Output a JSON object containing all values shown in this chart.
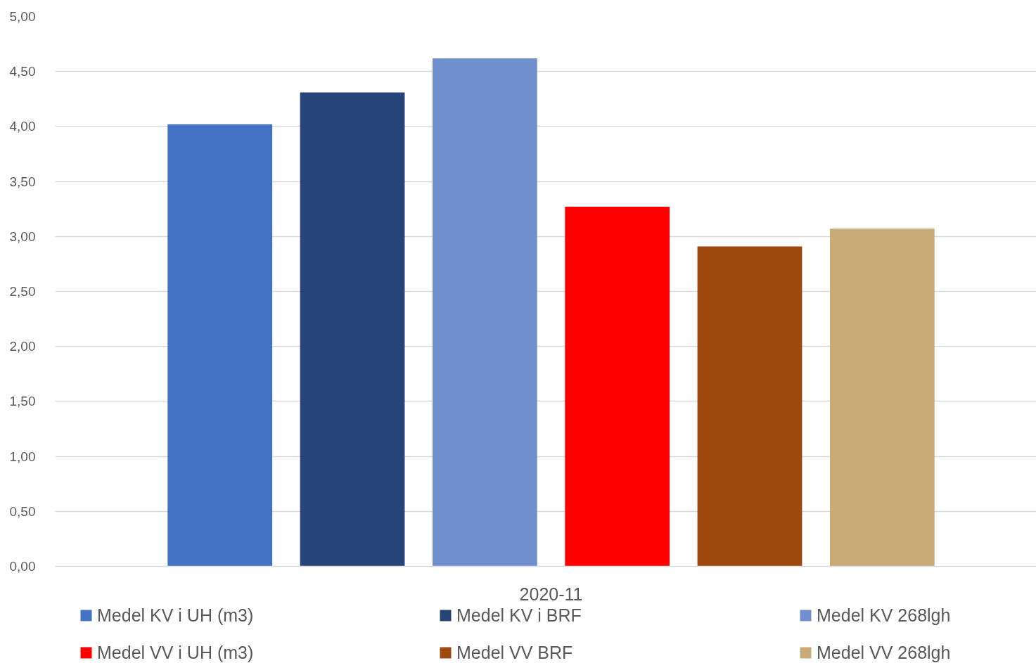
{
  "chart_data": {
    "type": "bar",
    "categories": [
      "2020-11"
    ],
    "series": [
      {
        "name": "Medel KV i UH (m3)",
        "color": "#4472c4",
        "values": [
          4.02
        ]
      },
      {
        "name": "Medel KV i BRF",
        "color": "#264478",
        "values": [
          4.31
        ]
      },
      {
        "name": "Medel KV 268lgh",
        "color": "#6f8fcf",
        "values": [
          4.62
        ]
      },
      {
        "name": "Medel VV i UH (m3)",
        "color": "#ff0000",
        "values": [
          3.27
        ]
      },
      {
        "name": "Medel VV BRF",
        "color": "#9e480e",
        "values": [
          2.91
        ]
      },
      {
        "name": "Medel VV 268lgh",
        "color": "#c9ab77",
        "values": [
          3.07
        ]
      }
    ],
    "ylim": [
      0,
      5
    ],
    "yticks": [
      {
        "value": 0,
        "label": "0,00"
      },
      {
        "value": 0.5,
        "label": "0,50"
      },
      {
        "value": 1,
        "label": "1,00"
      },
      {
        "value": 1.5,
        "label": "1,50"
      },
      {
        "value": 2,
        "label": "2,00"
      },
      {
        "value": 2.5,
        "label": "2,50"
      },
      {
        "value": 3,
        "label": "3,00"
      },
      {
        "value": 3.5,
        "label": "3,50"
      },
      {
        "value": 4,
        "label": "4,00"
      },
      {
        "value": 4.5,
        "label": "4,50"
      },
      {
        "value": 5,
        "label": "5,00"
      }
    ],
    "grid": "y",
    "legend": "bottom"
  }
}
